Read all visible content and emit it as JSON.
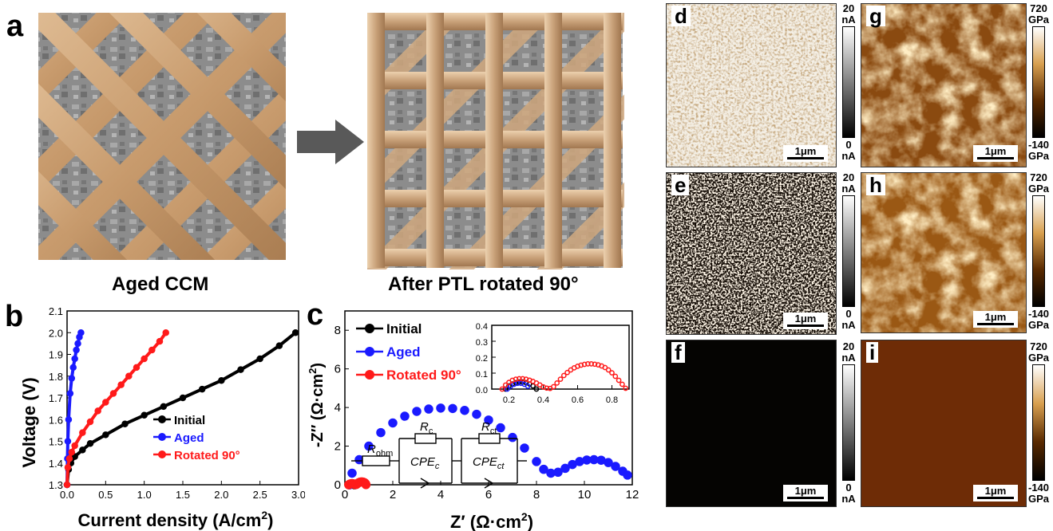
{
  "panel_labels": {
    "a": "a",
    "b": "b",
    "c": "c",
    "d": "d",
    "e": "e",
    "f": "f",
    "g": "g",
    "h": "h",
    "i": "i"
  },
  "panel_a": {
    "left_caption": "Aged CCM",
    "right_caption": "After PTL rotated 90°"
  },
  "scale_bar": "1μm",
  "current_colorbar": {
    "max": "20",
    "max_unit": "nA",
    "min": "0",
    "min_unit": "nA"
  },
  "modulus_colorbar": {
    "max": "720",
    "max_unit": "GPa",
    "min": "-140",
    "min_unit": "GPa"
  },
  "circuit": {
    "r_ohm": "R",
    "r_ohm_sub": "ohm",
    "r_c": "R",
    "r_c_sub": "c",
    "r_ct": "R",
    "r_ct_sub": "ct",
    "cpe_c": "CPE",
    "cpe_c_sub": "c",
    "cpe_ct": "CPE",
    "cpe_ct_sub": "ct"
  },
  "colors": {
    "initial": "#000000",
    "aged": "#1a1aff",
    "rotated": "#ff1a1a",
    "ptl": "#c9a27a"
  },
  "chart_data": [
    {
      "type": "line",
      "panel": "b",
      "xlabel": "Current density (A/cm",
      "xlabel_sup": "2",
      "xlabel_end": ")",
      "ylabel": "Voltage (V)",
      "xlim": [
        0,
        3.0
      ],
      "ylim": [
        1.3,
        2.1
      ],
      "xticks": [
        "0.0",
        "0.5",
        "1.0",
        "1.5",
        "2.0",
        "2.5",
        "3.0"
      ],
      "yticks": [
        "1.3",
        "1.4",
        "1.5",
        "1.6",
        "1.7",
        "1.8",
        "1.9",
        "2.0",
        "2.1"
      ],
      "legend": "center-right",
      "series": [
        {
          "name": "Initial",
          "color": "#000000",
          "x": [
            0,
            0.02,
            0.05,
            0.1,
            0.2,
            0.3,
            0.5,
            0.75,
            1.0,
            1.25,
            1.5,
            1.75,
            2.0,
            2.25,
            2.5,
            2.75,
            2.96
          ],
          "y": [
            1.3,
            1.37,
            1.4,
            1.43,
            1.46,
            1.49,
            1.53,
            1.58,
            1.62,
            1.66,
            1.7,
            1.74,
            1.78,
            1.83,
            1.88,
            1.94,
            2.0
          ]
        },
        {
          "name": "Aged",
          "color": "#1a1aff",
          "x": [
            0,
            0.005,
            0.01,
            0.02,
            0.04,
            0.06,
            0.08,
            0.1,
            0.12,
            0.14,
            0.16,
            0.18
          ],
          "y": [
            1.3,
            1.42,
            1.5,
            1.6,
            1.72,
            1.79,
            1.84,
            1.88,
            1.92,
            1.95,
            1.98,
            2.0
          ]
        },
        {
          "name": "Rotated 90°",
          "color": "#ff1a1a",
          "x": [
            0,
            0.01,
            0.03,
            0.06,
            0.1,
            0.2,
            0.3,
            0.4,
            0.5,
            0.6,
            0.7,
            0.8,
            0.9,
            1.0,
            1.1,
            1.2,
            1.28
          ],
          "y": [
            1.3,
            1.38,
            1.42,
            1.45,
            1.48,
            1.54,
            1.59,
            1.64,
            1.68,
            1.72,
            1.76,
            1.8,
            1.84,
            1.88,
            1.92,
            1.96,
            2.0
          ]
        }
      ]
    },
    {
      "type": "scatter",
      "panel": "c",
      "xlabel": "Z′ (Ω·cm",
      "xlabel_sup": "2",
      "xlabel_end": ")",
      "ylabel": "-Z′′ (Ω·cm",
      "ylabel_sup": "2",
      "ylabel_end": ")",
      "xlim": [
        0,
        12
      ],
      "ylim": [
        0,
        9
      ],
      "xticks": [
        "0",
        "2",
        "4",
        "6",
        "8",
        "10",
        "12"
      ],
      "yticks": [
        "0",
        "2",
        "4",
        "6",
        "8"
      ],
      "legend": "top-left",
      "series": [
        {
          "name": "Initial",
          "color": "#000000",
          "x": [
            0.18,
            0.2,
            0.23,
            0.26,
            0.29,
            0.32,
            0.35,
            0.38,
            0.41
          ],
          "y": [
            0,
            0.02,
            0.035,
            0.045,
            0.045,
            0.04,
            0.03,
            0.015,
            0
          ]
        },
        {
          "name": "Aged",
          "color": "#1a1aff",
          "x": [
            0.2,
            0.3,
            0.6,
            1.0,
            1.5,
            2.0,
            2.5,
            3.0,
            3.5,
            4.0,
            4.5,
            5.0,
            5.5,
            6.0,
            6.5,
            7.0,
            7.5,
            8.0,
            8.3,
            8.6,
            8.9,
            9.2,
            9.5,
            9.8,
            10.1,
            10.4,
            10.7,
            11.0,
            11.3,
            11.6,
            11.8
          ],
          "y": [
            0,
            0.6,
            1.3,
            2.0,
            2.7,
            3.2,
            3.55,
            3.8,
            3.92,
            3.97,
            3.95,
            3.85,
            3.65,
            3.35,
            2.95,
            2.45,
            1.9,
            1.2,
            0.8,
            0.6,
            0.65,
            0.85,
            1.05,
            1.2,
            1.28,
            1.3,
            1.27,
            1.15,
            0.95,
            0.7,
            0.5
          ]
        },
        {
          "name": "Rotated 90°",
          "color": "#ff1a1a",
          "x": [
            0.16,
            0.2,
            0.25,
            0.3,
            0.35,
            0.4,
            0.44,
            0.48,
            0.52,
            0.58,
            0.64,
            0.7,
            0.76,
            0.82,
            0.86,
            0.88
          ],
          "y": [
            0,
            0.03,
            0.05,
            0.06,
            0.05,
            0.03,
            0.01,
            0.02,
            0.06,
            0.11,
            0.14,
            0.15,
            0.14,
            0.11,
            0.06,
            0.01
          ]
        }
      ]
    },
    {
      "type": "scatter",
      "panel": "c-inset",
      "xlim": [
        0.1,
        0.9
      ],
      "ylim": [
        0,
        0.4
      ],
      "xticks": [
        "0.2",
        "0.4",
        "0.6",
        "0.8"
      ],
      "yticks": [
        "0.0",
        "0.1",
        "0.2",
        "0.3",
        "0.4"
      ],
      "series": [
        {
          "name": "Initial",
          "color": "#000000",
          "x": [
            0.18,
            0.2,
            0.22,
            0.24,
            0.26,
            0.28,
            0.3,
            0.32,
            0.34,
            0.36
          ],
          "y": [
            0.0,
            0.02,
            0.032,
            0.04,
            0.044,
            0.044,
            0.04,
            0.032,
            0.02,
            0.0
          ]
        },
        {
          "name": "Aged",
          "color": "#1a1aff",
          "x": [
            0.19,
            0.21,
            0.23,
            0.25,
            0.27,
            0.29,
            0.31
          ],
          "y": [
            0.0,
            0.018,
            0.03,
            0.036,
            0.036,
            0.03,
            0.018
          ]
        },
        {
          "name": "Rotated 90°",
          "color": "#ff1a1a",
          "x": [
            0.16,
            0.18,
            0.2,
            0.22,
            0.24,
            0.26,
            0.28,
            0.3,
            0.32,
            0.34,
            0.36,
            0.38,
            0.4,
            0.42,
            0.44,
            0.46,
            0.48,
            0.5,
            0.52,
            0.54,
            0.56,
            0.58,
            0.6,
            0.62,
            0.64,
            0.66,
            0.68,
            0.7,
            0.72,
            0.74,
            0.76,
            0.78,
            0.8,
            0.82,
            0.84,
            0.86,
            0.88
          ],
          "y": [
            0.0,
            0.025,
            0.042,
            0.055,
            0.062,
            0.065,
            0.065,
            0.062,
            0.056,
            0.048,
            0.038,
            0.026,
            0.014,
            0.006,
            0.004,
            0.015,
            0.038,
            0.062,
            0.085,
            0.104,
            0.12,
            0.133,
            0.143,
            0.15,
            0.155,
            0.158,
            0.158,
            0.156,
            0.152,
            0.145,
            0.135,
            0.12,
            0.102,
            0.08,
            0.055,
            0.03,
            0.005
          ]
        }
      ]
    }
  ]
}
